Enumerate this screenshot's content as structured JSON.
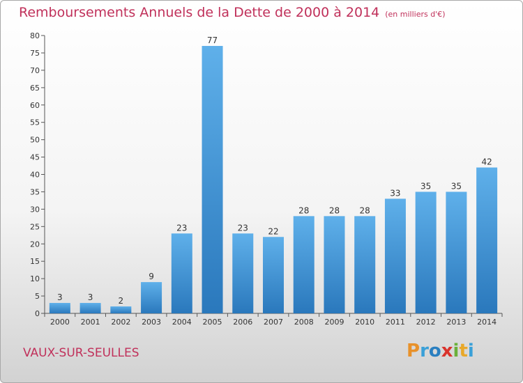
{
  "header": {
    "title": "Remboursements Annuels de la Dette de 2000 à 2014",
    "unit": "(en milliers d'€)"
  },
  "footer": {
    "commune": "VAUX-SUR-SEULLES",
    "logo_text": "Proxiti"
  },
  "colors": {
    "title": "#c0305a",
    "bar_top": "#5fb0ea",
    "bar_bottom": "#2a78bc",
    "logo": [
      "#e8912a",
      "#3aa0d8",
      "#2a7fc0",
      "#d9332c",
      "#6ab03a",
      "#e8a82a",
      "#3aa0d8"
    ]
  },
  "chart_data": {
    "type": "bar",
    "title": "Remboursements Annuels de la Dette de 2000 à 2014",
    "categories": [
      "2000",
      "2001",
      "2002",
      "2003",
      "2004",
      "2005",
      "2006",
      "2007",
      "2008",
      "2009",
      "2010",
      "2011",
      "2012",
      "2013",
      "2014"
    ],
    "values": [
      3,
      3,
      2,
      9,
      23,
      77,
      23,
      22,
      28,
      28,
      28,
      33,
      35,
      35,
      42
    ],
    "ylim": [
      0,
      80
    ],
    "yticks": [
      0,
      5,
      10,
      15,
      20,
      25,
      30,
      35,
      40,
      45,
      50,
      55,
      60,
      65,
      70,
      75,
      80
    ],
    "grid": false,
    "xlabel": "",
    "ylabel": ""
  }
}
